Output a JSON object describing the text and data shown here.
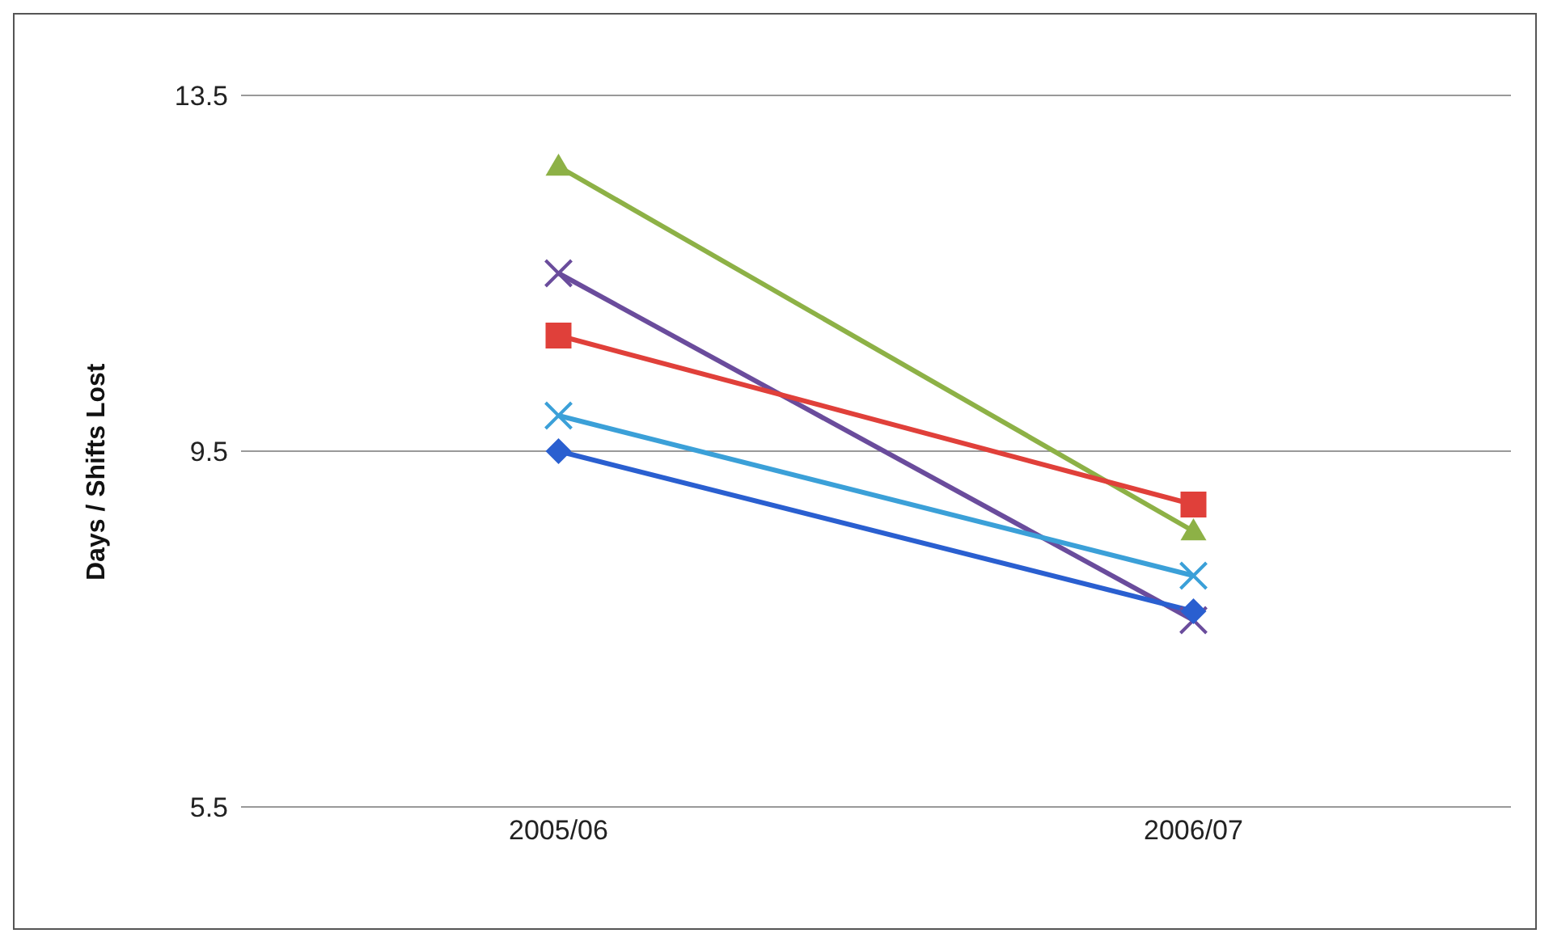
{
  "chart_data": {
    "type": "line",
    "ylabel": "Days / Shifts Lost",
    "categories": [
      "2005/06",
      "2006/07"
    ],
    "series": [
      {
        "color": "#8db146",
        "marker": "triangle",
        "values": [
          12.7,
          8.6
        ]
      },
      {
        "color": "#6a4c9c",
        "marker": "cross",
        "values": [
          11.5,
          7.6
        ]
      },
      {
        "color": "#e0403a",
        "marker": "square",
        "values": [
          10.8,
          8.9
        ]
      },
      {
        "color": "#3ba0d8",
        "marker": "cross",
        "values": [
          9.9,
          8.1
        ]
      },
      {
        "color": "#2a5fd0",
        "marker": "diamond",
        "values": [
          9.5,
          7.7
        ]
      }
    ],
    "ylim": [
      5.5,
      13.5
    ],
    "yticks": [
      5.5,
      9.5,
      13.5
    ],
    "grid": "y",
    "legend": false,
    "line_style": "solid"
  }
}
